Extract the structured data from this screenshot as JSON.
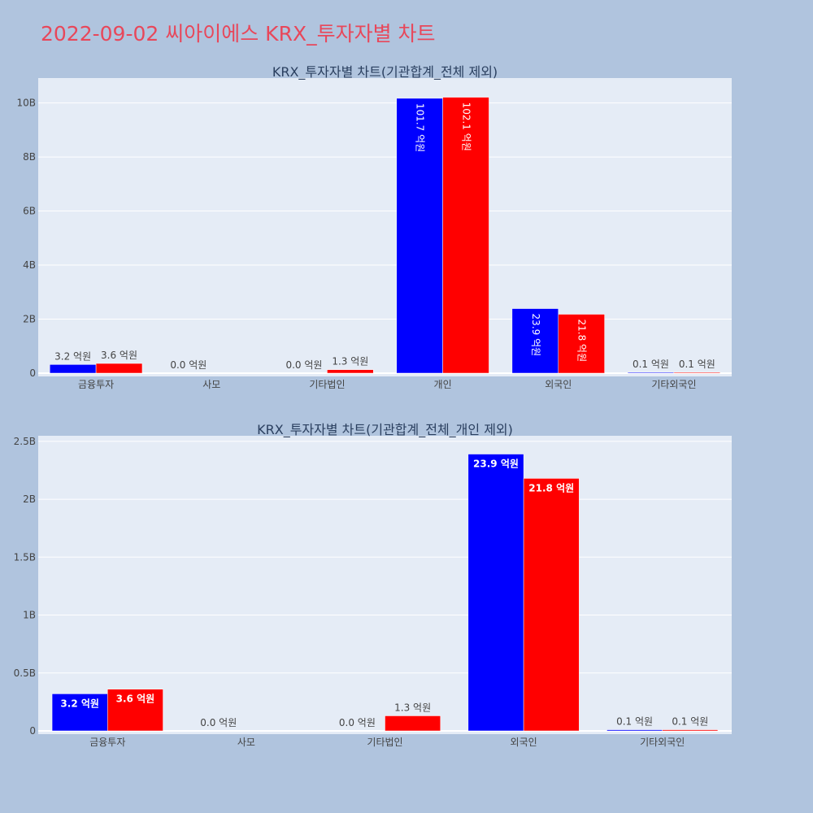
{
  "page": {
    "title": "2022-09-02 씨아이에스 KRX_투자자별 차트"
  },
  "colors": {
    "buy": "#0000ff",
    "sell": "#ff0000",
    "plot_bg": "#e5ecf6",
    "page_bg": "#b0c4de",
    "title": "#e8475a"
  },
  "chart_data": [
    {
      "type": "bar",
      "title": "KRX_투자자별 차트(기관합계_전체 제외)",
      "categories": [
        "금융투자",
        "사모",
        "기타법인",
        "개인",
        "외국인",
        "기타외국인"
      ],
      "series": [
        {
          "values": [
            320000000,
            0,
            0,
            10170000000,
            2390000000,
            10000000
          ],
          "labels": [
            "3.2 억원",
            "0.0 억원",
            "0.0 억원",
            "101.7 억원",
            "23.9 억원",
            "0.1 억원"
          ]
        },
        {
          "values": [
            360000000,
            0,
            130000000,
            10210000000,
            2180000000,
            10000000
          ],
          "labels": [
            "3.6 억원",
            "",
            "1.3 억원",
            "102.1 억원",
            "21.8 억원",
            "0.1 억원"
          ]
        }
      ],
      "yticks": [
        0,
        2000000000,
        4000000000,
        6000000000,
        8000000000,
        10000000000
      ],
      "ytick_labels": [
        "0",
        "2B",
        "4B",
        "6B",
        "8B",
        "10B"
      ],
      "ylim": [
        0,
        10800000000
      ],
      "grid": true,
      "inside_label_style": "rotated"
    },
    {
      "type": "bar",
      "title": "KRX_투자자별 차트(기관합계_전체_개인 제외)",
      "categories": [
        "금융투자",
        "사모",
        "기타법인",
        "외국인",
        "기타외국인"
      ],
      "series": [
        {
          "values": [
            320000000,
            0,
            0,
            2390000000,
            10000000
          ],
          "labels": [
            "3.2 억원",
            "0.0 억원",
            "0.0 억원",
            "23.9 억원",
            "0.1 억원"
          ]
        },
        {
          "values": [
            360000000,
            0,
            130000000,
            2180000000,
            10000000
          ],
          "labels": [
            "3.6 억원",
            "",
            "1.3 억원",
            "21.8 억원",
            "0.1 억원"
          ]
        }
      ],
      "yticks": [
        0,
        500000000,
        1000000000,
        1500000000,
        2000000000,
        2500000000
      ],
      "ytick_labels": [
        "0",
        "0.5B",
        "1B",
        "1.5B",
        "2B",
        "2.5B"
      ],
      "ylim": [
        0,
        2520000000
      ],
      "grid": true,
      "inside_label_style": "horizontal"
    }
  ]
}
